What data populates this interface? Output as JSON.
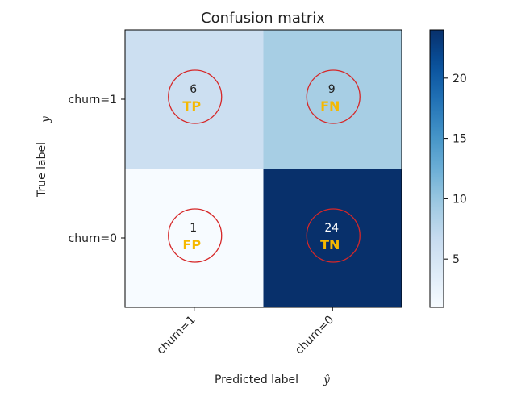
{
  "chart_data": {
    "type": "heatmap",
    "title": "Confusion matrix",
    "xlabel": "Predicted label",
    "xlabel_symbol": "ŷ",
    "ylabel": "True label",
    "ylabel_symbol": "y",
    "x_categories": [
      "churn=1",
      "churn=0"
    ],
    "y_categories": [
      "churn=1",
      "churn=0"
    ],
    "values": [
      [
        6,
        9
      ],
      [
        1,
        24
      ]
    ],
    "annotations": [
      [
        "TP",
        "FN"
      ],
      [
        "FP",
        "TN"
      ]
    ],
    "annotation_color": "#f5b800",
    "circle_color": "#d62728",
    "colormap": "Blues",
    "colorbar": {
      "range": [
        1,
        24
      ],
      "ticks": [
        5,
        10,
        15,
        20
      ]
    },
    "grid": false
  }
}
